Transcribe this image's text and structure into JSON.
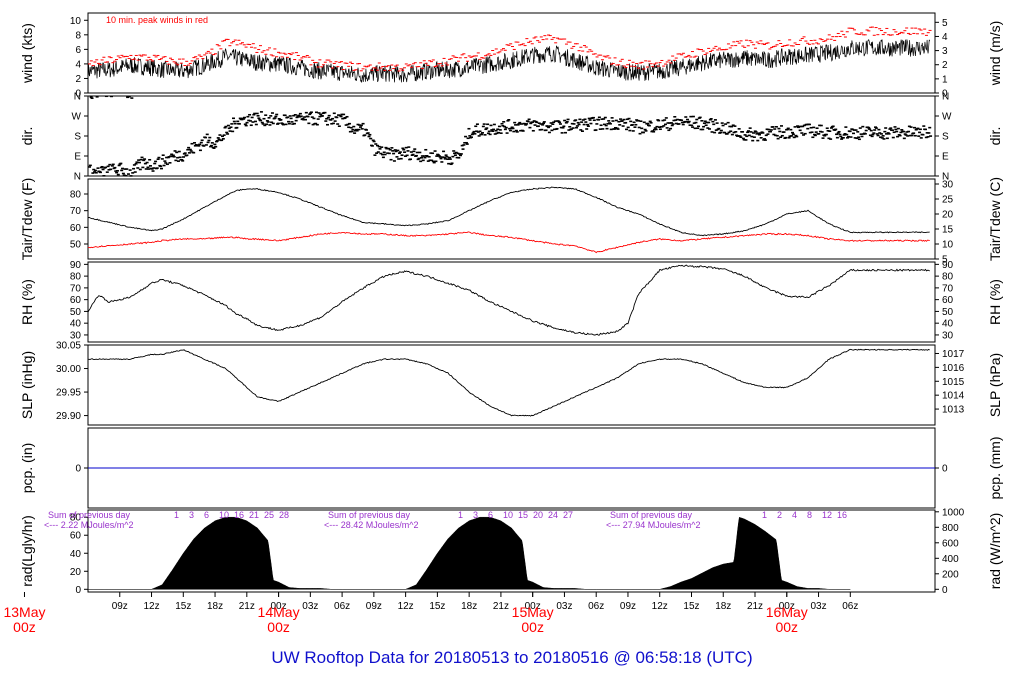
{
  "title": "UW Rooftop Data for 20180513  to  20180516 @ 06:58:18  (UTC)",
  "colors": {
    "wind_peak": "#ff0000",
    "tdew": "#ff0000",
    "pcp": "#0000cc",
    "radtext": "#9933cc",
    "day": "#ff0000",
    "title": "#1010cc"
  },
  "chart_data": [
    {
      "type": "line",
      "panel": "wind",
      "ylabel": "wind (kts)",
      "ylabel_right": "wind (m/s)",
      "ylim": [
        0,
        11
      ],
      "yticks": [
        0,
        2,
        4,
        6,
        8,
        10
      ],
      "yticks_right": [
        0,
        1,
        2,
        3,
        4,
        5
      ],
      "annotation": "10 min. peak winds in red",
      "series": [
        {
          "x": [
            6,
            8,
            10,
            12,
            13,
            15,
            17,
            19,
            20,
            21,
            22,
            24,
            26,
            28,
            30,
            32,
            34,
            36,
            38,
            40,
            42,
            44,
            46,
            48,
            50,
            52,
            54,
            56,
            58,
            60,
            62,
            64,
            66,
            68,
            70,
            72,
            74,
            76,
            78
          ],
          "values": [
            3.0,
            3.2,
            3.8,
            3.5,
            3.2,
            3.0,
            3.8,
            5.0,
            4.8,
            4.5,
            4.2,
            4.0,
            3.5,
            3.0,
            2.8,
            2.5,
            2.7,
            2.5,
            3.0,
            3.2,
            3.5,
            4.0,
            4.5,
            5.2,
            5.5,
            4.5,
            3.5,
            3.0,
            2.8,
            3.0,
            3.5,
            4.2,
            4.5,
            4.8,
            4.5,
            5.0,
            5.2,
            5.5,
            6.2
          ]
        },
        {
          "x": [
            6,
            8,
            10,
            12,
            13,
            15,
            17,
            19,
            20,
            21,
            22,
            24,
            26,
            28,
            30,
            32,
            34,
            36,
            38,
            40,
            42,
            44,
            46,
            48,
            50,
            52,
            54,
            56,
            58,
            60,
            62,
            64,
            66,
            68,
            70,
            72,
            74,
            76,
            78
          ],
          "values": [
            4.0,
            4.5,
            5.0,
            4.8,
            4.5,
            4.2,
            5.0,
            7.0,
            6.8,
            6.5,
            6.0,
            5.5,
            4.8,
            4.0,
            3.8,
            3.5,
            3.6,
            3.5,
            4.0,
            4.5,
            5.0,
            5.5,
            6.5,
            7.2,
            7.5,
            6.5,
            5.0,
            4.2,
            3.8,
            4.2,
            5.0,
            5.8,
            6.2,
            6.8,
            6.5,
            7.0,
            7.2,
            7.5,
            8.5
          ]
        }
      ]
    },
    {
      "type": "scatter",
      "panel": "dir",
      "ylabel": "dir.",
      "ylabel_right": "dir.",
      "ylim": [
        0,
        360
      ],
      "yticks": [
        "N",
        "E",
        "S",
        "W",
        "N"
      ],
      "series": [
        {
          "x": [
            6,
            7,
            8,
            9,
            10,
            11,
            12,
            13,
            14,
            15,
            16,
            17,
            18,
            19,
            20,
            21,
            22,
            24,
            26,
            28,
            30,
            31,
            32,
            33,
            34,
            35,
            36,
            37,
            38,
            39,
            40,
            41,
            42,
            44,
            46,
            48,
            50,
            52,
            54,
            56,
            58,
            60,
            62,
            64,
            66,
            68,
            70,
            72,
            74,
            76,
            78
          ],
          "values": [
            20,
            15,
            25,
            30,
            10,
            60,
            50,
            65,
            90,
            100,
            130,
            160,
            150,
            200,
            250,
            255,
            260,
            250,
            255,
            260,
            250,
            210,
            205,
            120,
            100,
            95,
            105,
            100,
            85,
            90,
            80,
            95,
            200,
            215,
            225,
            230,
            220,
            230,
            235,
            240,
            220,
            230,
            245,
            235,
            215,
            185,
            190,
            200,
            205,
            195,
            195
          ]
        }
      ]
    },
    {
      "type": "line",
      "panel": "temp",
      "ylabel": "Tair/Tdew (F)",
      "ylabel_right": "Tair/Tdew (C)",
      "ylim": [
        41,
        89
      ],
      "yticks": [
        50,
        60,
        70,
        80
      ],
      "yticks_right": [
        5,
        10,
        15,
        20,
        25,
        30
      ],
      "series": [
        {
          "x": [
            6,
            8,
            10,
            12,
            13,
            15,
            17,
            19,
            20,
            21,
            22,
            24,
            26,
            28,
            30,
            32,
            34,
            36,
            38,
            40,
            42,
            44,
            46,
            48,
            50,
            52,
            54,
            56,
            58,
            60,
            62,
            64,
            66,
            68,
            70,
            72,
            74,
            76,
            78
          ],
          "values": [
            66,
            63,
            60,
            58,
            59,
            65,
            72,
            79,
            82,
            83,
            83,
            81,
            77,
            72,
            67,
            63,
            62,
            61,
            62,
            64,
            70,
            76,
            81,
            83,
            84,
            83,
            78,
            72,
            68,
            62,
            57,
            55,
            56,
            58,
            62,
            68,
            70,
            62,
            57
          ]
        },
        {
          "x": [
            6,
            8,
            10,
            12,
            13,
            15,
            17,
            19,
            20,
            21,
            22,
            24,
            26,
            28,
            30,
            32,
            34,
            36,
            38,
            40,
            42,
            44,
            46,
            48,
            50,
            52,
            54,
            56,
            58,
            60,
            62,
            64,
            66,
            68,
            70,
            72,
            74,
            76,
            78
          ],
          "values": [
            48,
            49,
            50,
            51,
            52,
            53,
            53,
            54,
            54,
            53,
            53,
            52,
            54,
            56,
            57,
            56,
            56,
            55,
            55,
            56,
            57,
            55,
            54,
            52,
            50,
            49,
            45,
            48,
            51,
            53,
            52,
            53,
            54,
            55,
            56,
            56,
            55,
            53,
            52
          ]
        }
      ]
    },
    {
      "type": "line",
      "panel": "rh",
      "ylabel": "RH (%)",
      "ylabel_right": "RH (%)",
      "ylim": [
        24,
        92
      ],
      "yticks": [
        30,
        40,
        50,
        60,
        70,
        80,
        90
      ],
      "series": [
        {
          "x": [
            6,
            7,
            8,
            10,
            12,
            13,
            15,
            17,
            19,
            20,
            21,
            22,
            24,
            26,
            28,
            30,
            32,
            34,
            36,
            38,
            40,
            42,
            44,
            46,
            48,
            50,
            52,
            54,
            56,
            57,
            58,
            60,
            62,
            64,
            66,
            68,
            70,
            72,
            74,
            76,
            78
          ],
          "values": [
            50,
            64,
            58,
            62,
            74,
            77,
            72,
            64,
            55,
            48,
            44,
            38,
            34,
            38,
            45,
            58,
            70,
            80,
            84,
            80,
            74,
            68,
            58,
            50,
            42,
            36,
            32,
            30,
            33,
            40,
            65,
            85,
            89,
            88,
            86,
            80,
            70,
            63,
            62,
            72,
            85
          ]
        }
      ]
    },
    {
      "type": "line",
      "panel": "slp",
      "ylabel": "SLP (inHg)",
      "ylabel_right": "SLP (hPa)",
      "ylim": [
        29.88,
        30.05
      ],
      "yticks": [
        29.9,
        29.95,
        30.0,
        30.05
      ],
      "yticks_right": [
        1013,
        1014,
        1015,
        1016,
        1017
      ],
      "series": [
        {
          "x": [
            6,
            8,
            10,
            12,
            13,
            15,
            17,
            19,
            20,
            21,
            22,
            24,
            26,
            28,
            30,
            32,
            34,
            36,
            38,
            40,
            42,
            44,
            46,
            48,
            50,
            52,
            54,
            56,
            58,
            60,
            62,
            64,
            66,
            68,
            70,
            72,
            74,
            76,
            78
          ],
          "values": [
            30.02,
            30.02,
            30.02,
            30.03,
            30.03,
            30.04,
            30.02,
            30.0,
            29.98,
            29.96,
            29.94,
            29.93,
            29.95,
            29.97,
            29.99,
            30.01,
            30.02,
            30.02,
            30.01,
            29.99,
            29.95,
            29.92,
            29.9,
            29.9,
            29.92,
            29.94,
            29.96,
            29.98,
            30.01,
            30.02,
            30.02,
            30.01,
            29.99,
            29.97,
            29.96,
            29.96,
            29.98,
            30.02,
            30.04
          ]
        }
      ]
    },
    {
      "type": "line",
      "panel": "pcp",
      "ylabel": "pcp. (in)",
      "ylabel_right": "pcp. (mm)",
      "ylim": [
        -1,
        1
      ],
      "yticks": [
        0
      ],
      "yticks_right": [
        0
      ],
      "series": [
        {
          "x": [
            6,
            78
          ],
          "values": [
            0,
            0
          ]
        }
      ]
    },
    {
      "type": "area",
      "panel": "rad",
      "ylabel": "rad(Lgly/hr)",
      "ylabel_right": "rad (W/m^2)",
      "ylim": [
        -3,
        88
      ],
      "yticks": [
        0,
        20,
        40,
        60,
        80
      ],
      "yticks_right": [
        0,
        200,
        400,
        600,
        800,
        1000
      ],
      "notes": [
        {
          "line1": "Sum of previous day",
          "line2": "<--- 2.22 MJoules/m^2"
        },
        {
          "line1": "Sum of previous day",
          "line2": "<--- 28.42 MJoules/m^2"
        },
        {
          "line1": "Sum of previous day",
          "line2": "<--- 27.94 MJoules/m^2"
        }
      ],
      "hour_labels": [
        [
          "1",
          "3",
          "6",
          "10",
          "16",
          "21",
          "25",
          "28"
        ],
        [
          "1",
          "3",
          "6",
          "10",
          "15",
          "20",
          "24",
          "27"
        ],
        [
          "1",
          "2",
          "4",
          "8",
          "12",
          "16"
        ]
      ],
      "series": [
        {
          "x": [
            6,
            12,
            13,
            14,
            15,
            16,
            17,
            18,
            19,
            20,
            21,
            22,
            23,
            23.5,
            24,
            25,
            26,
            27,
            28,
            29,
            30
          ],
          "values": [
            0,
            0,
            5,
            22,
            40,
            56,
            68,
            76,
            80,
            80,
            76,
            68,
            54,
            10,
            8,
            2,
            1,
            1,
            1,
            0,
            0
          ]
        },
        {
          "x": [
            30,
            36,
            37,
            38,
            39,
            40,
            41,
            42,
            43,
            44,
            45,
            46,
            47,
            47.5,
            48,
            49,
            50,
            51,
            52,
            53,
            54
          ],
          "values": [
            0,
            0,
            5,
            22,
            40,
            56,
            68,
            76,
            80,
            80,
            76,
            68,
            54,
            10,
            8,
            2,
            1,
            1,
            1,
            0,
            0
          ]
        },
        {
          "x": [
            54,
            60,
            61,
            62,
            63,
            64,
            65,
            66,
            67,
            67.5,
            68,
            69,
            70,
            71,
            71.5,
            72,
            73,
            74,
            75,
            76,
            78
          ],
          "values": [
            0,
            0,
            3,
            8,
            12,
            18,
            24,
            28,
            30,
            80,
            78,
            72,
            64,
            55,
            10,
            8,
            3,
            1,
            1,
            0,
            0
          ]
        }
      ]
    }
  ],
  "x_axis": {
    "hour_ticks": [
      "09z",
      "12z",
      "15z",
      "18z",
      "21z",
      "00z",
      "03z",
      "06z",
      "09z",
      "12z",
      "15z",
      "18z",
      "21z",
      "00z",
      "03z",
      "06z",
      "09z",
      "12z",
      "15z",
      "18z",
      "21z",
      "00z",
      "03z",
      "06z"
    ],
    "days": [
      {
        "label": "13May",
        "sub": "00z"
      },
      {
        "label": "14May",
        "sub": "00z"
      },
      {
        "label": "15May",
        "sub": "00z"
      },
      {
        "label": "16May",
        "sub": "00z"
      }
    ]
  }
}
